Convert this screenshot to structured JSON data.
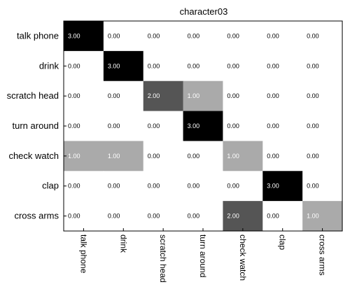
{
  "chart_data": {
    "type": "heatmap",
    "title": "character03",
    "rows": [
      "talk phone",
      "drink",
      "scratch head",
      "turn around",
      "check watch",
      "clap",
      "cross arms"
    ],
    "columns": [
      "talk phone",
      "drink",
      "scratch head",
      "turn around",
      "check watch",
      "clap",
      "cross arms"
    ],
    "values": [
      [
        3,
        0,
        0,
        0,
        0,
        0,
        0
      ],
      [
        0,
        3,
        0,
        0,
        0,
        0,
        0
      ],
      [
        0,
        0,
        2,
        1,
        0,
        0,
        0
      ],
      [
        0,
        0,
        0,
        3,
        0,
        0,
        0
      ],
      [
        1,
        1,
        0,
        0,
        1,
        0,
        0
      ],
      [
        0,
        0,
        0,
        0,
        0,
        3,
        0
      ],
      [
        0,
        0,
        0,
        0,
        2,
        0,
        1
      ]
    ],
    "value_range": [
      0,
      3
    ],
    "colormap": "white-to-black",
    "value_format": "0.00",
    "grid": false
  }
}
